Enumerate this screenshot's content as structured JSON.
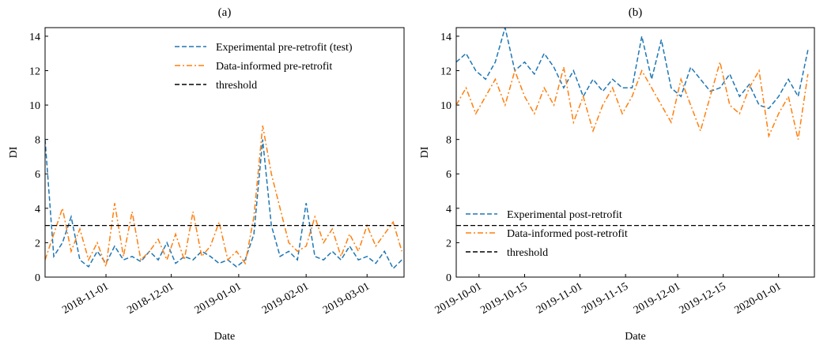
{
  "chart_data": [
    {
      "type": "line",
      "title": "(a)",
      "x_label": "Date",
      "y_label": "DI",
      "x": [
        "2018-10-04",
        "2018-10-08",
        "2018-10-12",
        "2018-10-16",
        "2018-10-20",
        "2018-10-24",
        "2018-10-28",
        "2018-11-01",
        "2018-11-05",
        "2018-11-09",
        "2018-11-13",
        "2018-11-17",
        "2018-11-21",
        "2018-11-25",
        "2018-11-29",
        "2018-12-03",
        "2018-12-07",
        "2018-12-11",
        "2018-12-15",
        "2018-12-19",
        "2018-12-23",
        "2018-12-27",
        "2018-12-31",
        "2019-01-04",
        "2019-01-08",
        "2019-01-12",
        "2019-01-16",
        "2019-01-20",
        "2019-01-24",
        "2019-01-28",
        "2019-02-01",
        "2019-02-05",
        "2019-02-09",
        "2019-02-13",
        "2019-02-17",
        "2019-02-21",
        "2019-02-25",
        "2019-03-01",
        "2019-03-05",
        "2019-03-09",
        "2019-03-13",
        "2019-03-17"
      ],
      "series": [
        {
          "name": "Experimental pre-retrofit (test)",
          "color": "#1f77b4",
          "dash": "dashed",
          "values": [
            8.0,
            1.2,
            2.0,
            3.5,
            1.0,
            0.6,
            1.5,
            0.8,
            1.8,
            1.0,
            1.2,
            0.9,
            1.5,
            1.0,
            2.0,
            0.8,
            1.2,
            1.0,
            1.5,
            1.2,
            0.8,
            1.0,
            0.6,
            1.0,
            2.5,
            8.0,
            3.0,
            1.2,
            1.5,
            1.0,
            4.3,
            1.2,
            1.0,
            1.5,
            1.0,
            1.8,
            1.0,
            1.2,
            0.8,
            1.5,
            0.5,
            1.0
          ]
        },
        {
          "name": "Data-informed pre-retrofit",
          "color": "#ff7f0e",
          "dash": "dashdot",
          "values": [
            1.0,
            2.5,
            4.0,
            1.5,
            2.8,
            1.0,
            2.0,
            0.6,
            4.3,
            1.2,
            3.8,
            1.0,
            1.5,
            2.2,
            1.0,
            2.5,
            1.0,
            3.8,
            1.2,
            1.8,
            3.2,
            1.0,
            1.5,
            0.8,
            3.5,
            8.8,
            6.0,
            4.0,
            2.0,
            1.5,
            1.8,
            3.5,
            2.0,
            2.8,
            1.2,
            2.5,
            1.5,
            3.0,
            1.8,
            2.5,
            3.2,
            1.5
          ]
        }
      ],
      "hlines": [
        {
          "name": "threshold",
          "value": 3,
          "color": "#000000",
          "dash": "dashed"
        }
      ],
      "xlim": [
        "2018-10-04",
        "2019-03-18"
      ],
      "xticks": [
        "2018-11-01",
        "2018-12-01",
        "2019-01-01",
        "2019-02-01",
        "2019-03-01"
      ],
      "ylim": [
        0,
        14.5
      ],
      "yticks": [
        0,
        2,
        4,
        6,
        8,
        10,
        12,
        14
      ],
      "legend": "upper right"
    },
    {
      "type": "line",
      "title": "(b)",
      "x_label": "Date",
      "y_label": "DI",
      "x": [
        "2019-09-24",
        "2019-09-27",
        "2019-09-30",
        "2019-10-03",
        "2019-10-06",
        "2019-10-09",
        "2019-10-12",
        "2019-10-15",
        "2019-10-18",
        "2019-10-21",
        "2019-10-24",
        "2019-10-27",
        "2019-10-30",
        "2019-11-02",
        "2019-11-05",
        "2019-11-08",
        "2019-11-11",
        "2019-11-14",
        "2019-11-17",
        "2019-11-20",
        "2019-11-23",
        "2019-11-26",
        "2019-11-29",
        "2019-12-02",
        "2019-12-05",
        "2019-12-08",
        "2019-12-11",
        "2019-12-14",
        "2019-12-17",
        "2019-12-20",
        "2019-12-23",
        "2019-12-26",
        "2019-12-29",
        "2020-01-01",
        "2020-01-04",
        "2020-01-07",
        "2020-01-10"
      ],
      "series": [
        {
          "name": "Experimental post-retrofit",
          "color": "#1f77b4",
          "dash": "dashed",
          "values": [
            12.5,
            13.0,
            12.0,
            11.5,
            12.5,
            14.5,
            12.0,
            12.5,
            11.8,
            13.0,
            12.2,
            11.0,
            12.0,
            10.5,
            11.5,
            10.8,
            11.5,
            11.0,
            11.0,
            14.0,
            11.5,
            13.8,
            11.0,
            10.5,
            12.2,
            11.5,
            10.8,
            11.0,
            11.8,
            10.5,
            11.2,
            10.0,
            9.8,
            10.5,
            11.5,
            10.5,
            13.2
          ]
        },
        {
          "name": "Data-informed post-retrofit",
          "color": "#ff7f0e",
          "dash": "dashdot",
          "values": [
            10.0,
            11.0,
            9.5,
            10.5,
            11.5,
            10.0,
            12.0,
            10.5,
            9.5,
            11.0,
            10.0,
            12.2,
            9.0,
            10.5,
            8.5,
            10.0,
            11.0,
            9.5,
            10.5,
            12.0,
            11.0,
            10.0,
            9.0,
            11.5,
            10.0,
            8.5,
            10.5,
            12.5,
            10.0,
            9.5,
            11.0,
            12.0,
            8.2,
            9.5,
            10.5,
            8.0,
            11.8
          ]
        }
      ],
      "hlines": [
        {
          "name": "threshold",
          "value": 3,
          "color": "#000000",
          "dash": "dashed"
        }
      ],
      "xlim": [
        "2019-09-24",
        "2020-01-12"
      ],
      "xticks": [
        "2019-10-01",
        "2019-10-15",
        "2019-11-01",
        "2019-11-15",
        "2019-12-01",
        "2019-12-15",
        "2020-01-01"
      ],
      "ylim": [
        0,
        14.5
      ],
      "yticks": [
        0,
        2,
        4,
        6,
        8,
        10,
        12,
        14
      ],
      "legend": "lower left"
    }
  ]
}
